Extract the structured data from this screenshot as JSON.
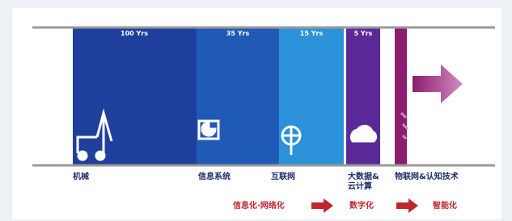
{
  "segments": [
    {
      "duration": "100 Yrs",
      "name": "机械"
    },
    {
      "duration": "35 Yrs",
      "name": "信息系统"
    },
    {
      "duration": "15 Yrs",
      "name": "互联网"
    },
    {
      "duration": "5 Yrs",
      "name": "大数据&\n云计算"
    },
    {
      "name": "物联网&认知技术"
    }
  ],
  "stages": [
    "信息化·网络化",
    "数字化",
    "智能化"
  ]
}
